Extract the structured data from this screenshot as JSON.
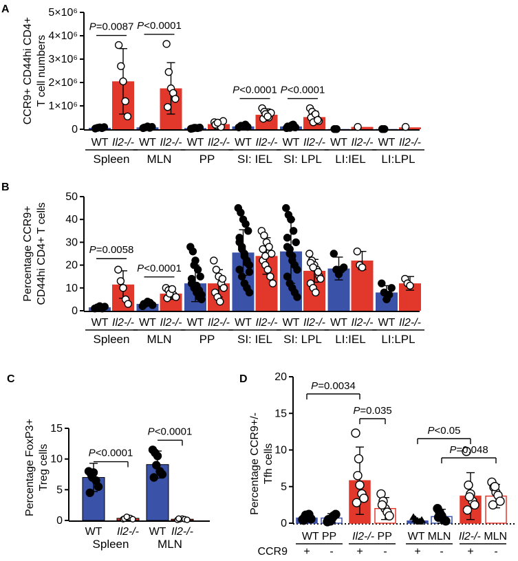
{
  "colors": {
    "wt": "#3a52a8",
    "ko": "#e2382c",
    "ink": "#000000"
  },
  "chart_data": [
    {
      "panel": "A",
      "type": "bar",
      "ylabel": [
        "CCR9+ CD44hi CD4+",
        "T cell numbers"
      ],
      "ylim": [
        0,
        5000000
      ],
      "yticks": [
        0,
        1000000,
        2000000,
        3000000,
        4000000,
        5000000
      ],
      "yticklabels": [
        "0",
        "1×10⁶",
        "2×10⁶",
        "3×10⁶",
        "4×10⁶",
        "5×10⁶"
      ],
      "groups": [
        "Spleen",
        "MLN",
        "PP",
        "SI: IEL",
        "SI: LPL",
        "LI:IEL",
        "LI:LPL"
      ],
      "genotypes": [
        "WT",
        "Il2-/-"
      ],
      "series": [
        {
          "name": "WT",
          "values": [
            60000,
            80000,
            50000,
            120000,
            120000,
            10000,
            10000
          ],
          "err": [
            20000,
            30000,
            20000,
            60000,
            60000,
            0,
            0
          ],
          "points": [
            [
              30000,
              60000,
              80000,
              50000,
              90000
            ],
            [
              50000,
              80000,
              120000,
              60000,
              100000,
              70000
            ],
            [
              20000,
              40000,
              60000,
              50000,
              70000,
              30000,
              60000
            ],
            [
              80000,
              150000,
              120000,
              200000,
              100000
            ],
            [
              50000,
              100000,
              150000,
              200000,
              80000,
              120000,
              60000,
              180000,
              90000
            ],
            [
              10000,
              10000
            ],
            [
              10000,
              10000
            ]
          ]
        },
        {
          "name": "Il2-/-",
          "values": [
            2050000,
            1750000,
            220000,
            620000,
            520000,
            100000,
            80000
          ],
          "err": [
            1400000,
            1100000,
            150000,
            250000,
            250000,
            0,
            0
          ],
          "points": [
            [
              3600000,
              2700000,
              2050000,
              1200000,
              550000
            ],
            [
              3650000,
              2450000,
              1750000,
              1550000,
              1300000,
              950000
            ],
            [
              300000,
              150000,
              250000,
              100000,
              350000,
              200000,
              280000
            ],
            [
              900000,
              750000,
              600000,
              500000,
              700000,
              450000,
              650000,
              550000
            ],
            [
              900000,
              750000,
              600000,
              450000,
              350000,
              500000,
              300000,
              650000,
              400000
            ],
            [
              100000
            ],
            [
              100000
            ]
          ]
        }
      ],
      "annotations": [
        {
          "text": "P=0.0087",
          "group": 0
        },
        {
          "text": "P<0.0001",
          "group": 1
        },
        {
          "text": "P<0.0001",
          "group": 3
        },
        {
          "text": "P<0.0001",
          "group": 4
        }
      ]
    },
    {
      "panel": "B",
      "type": "bar",
      "ylabel": [
        "Percentage CCR9+",
        "CD44hi CD4+ T cells"
      ],
      "ylim": [
        0,
        50
      ],
      "yticks": [
        0,
        10,
        20,
        30,
        40,
        50
      ],
      "yticklabels": [
        "0",
        "10",
        "20",
        "30",
        "40",
        "50"
      ],
      "groups": [
        "Spleen",
        "MLN",
        "PP",
        "SI: IEL",
        "SI: LPL",
        "LI:IEL",
        "LI:LPL"
      ],
      "genotypes": [
        "WT",
        "Il2-/-"
      ],
      "series": [
        {
          "name": "WT",
          "values": [
            1.5,
            3,
            12,
            25.5,
            26,
            18.5,
            8
          ],
          "err": [
            0.5,
            1,
            8,
            10,
            14,
            5,
            3
          ],
          "points": [
            [
              1,
              1.5,
              2,
              1,
              1.8
            ],
            [
              2,
              3,
              4,
              3.5,
              2.5,
              3
            ],
            [
              28,
              26,
              22,
              18,
              15,
              12,
              10,
              8,
              6,
              5,
              14,
              20,
              11,
              9,
              7
            ],
            [
              45,
              43,
              40,
              38,
              35,
              30,
              28,
              25,
              22,
              20,
              18,
              15,
              12,
              10,
              8,
              32,
              27,
              24,
              21,
              17
            ],
            [
              45,
              42,
              40,
              35,
              30,
              28,
              25,
              22,
              20,
              18,
              15,
              12,
              10,
              8,
              6,
              32,
              27,
              24
            ],
            [
              25,
              18,
              16,
              18,
              19
            ],
            [
              12,
              8,
              5,
              7,
              10
            ]
          ]
        },
        {
          "name": "Il2-/-",
          "values": [
            11.5,
            7.5,
            12,
            24,
            17.5,
            22,
            12
          ],
          "err": [
            6,
            2.5,
            6,
            8,
            5,
            4,
            3
          ],
          "points": [
            [
              18,
              13,
              10,
              5,
              3
            ],
            [
              10,
              9,
              8,
              7,
              6,
              5.5,
              7.5,
              9.5
            ],
            [
              22,
              18,
              15,
              12,
              10,
              8,
              6,
              4,
              14
            ],
            [
              35,
              33,
              30,
              28,
              25,
              22,
              20,
              18,
              15,
              12,
              27,
              24
            ],
            [
              25,
              22,
              20,
              18,
              15,
              12,
              10,
              8,
              17,
              14,
              21,
              19
            ],
            [
              26,
              20,
              19
            ],
            [
              14,
              12,
              11
            ]
          ]
        }
      ],
      "annotations": [
        {
          "text": "P=0.0058",
          "group": 0
        },
        {
          "text": "P<0.0001",
          "group": 1
        }
      ]
    },
    {
      "panel": "C",
      "type": "bar",
      "ylabel": [
        "Percentage FoxP3+",
        "Treg cells"
      ],
      "ylim": [
        0,
        15
      ],
      "yticks": [
        0,
        5,
        10,
        15
      ],
      "yticklabels": [
        "0",
        "5",
        "10",
        "15"
      ],
      "groups": [
        "Spleen",
        "MLN"
      ],
      "genotypes": [
        "WT",
        "Il2-/-"
      ],
      "series": [
        {
          "name": "WT",
          "values": [
            7,
            9.1
          ],
          "err": [
            2.3,
            2.2
          ],
          "points": [
            [
              8,
              7.5,
              7.8,
              6.5,
              5.5,
              4.5,
              7
            ],
            [
              11.5,
              11,
              10.5,
              8,
              7.5,
              7,
              9
            ]
          ]
        },
        {
          "name": "Il2-/-",
          "values": [
            0.35,
            0.2
          ],
          "err": [
            0.2,
            0.1
          ],
          "points": [
            [
              0.2,
              0.3,
              0.5,
              0.4,
              0.2,
              0.3,
              0.6
            ],
            [
              0.1,
              0.2,
              0.3,
              0.2,
              0.1,
              0.3
            ]
          ]
        }
      ],
      "annotations": [
        {
          "text": "P<0.0001",
          "group": 0
        },
        {
          "text": "P<0.0001",
          "group": 1
        }
      ]
    },
    {
      "panel": "D",
      "type": "bar",
      "ylabel": [
        "Percentage CCR9+/-",
        "Tfh cells"
      ],
      "ylim": [
        0,
        20
      ],
      "yticks": [
        0,
        5,
        10,
        15,
        20
      ],
      "yticklabels": [
        "0",
        "5",
        "10",
        "15",
        "20"
      ],
      "groups": [
        "WT PP",
        "Il2-/- PP",
        "WT MLN",
        "Il2-/- MLN"
      ],
      "ccr9_label": "CCR9",
      "ccr9_states": [
        "+",
        "-"
      ],
      "bars": [
        {
          "group": 0,
          "ccr9": "+",
          "value": 0.7,
          "err": 0.5,
          "points": [
            0.5,
            0.8,
            1,
            1.2,
            0.6,
            0.4,
            1.1,
            0.9
          ]
        },
        {
          "group": 0,
          "ccr9": "-",
          "value": 0.7,
          "err": 0.6,
          "points": [
            0.2,
            0.4,
            0.6,
            1,
            1.2,
            0.5,
            0.3,
            0.8
          ]
        },
        {
          "group": 1,
          "ccr9": "+",
          "value": 5.8,
          "err": 4.6,
          "points": [
            12.3,
            6.5,
            5.2,
            4,
            3.4,
            2.8,
            8.8
          ]
        },
        {
          "group": 1,
          "ccr9": "-",
          "value": 2,
          "err": 1.5,
          "points": [
            4,
            3,
            2,
            1.5,
            1,
            2.5
          ]
        },
        {
          "group": 2,
          "ccr9": "+",
          "value": 0.3,
          "err": 0.2,
          "points": [
            0.8,
            0.5,
            0.3,
            0.2,
            0.4
          ]
        },
        {
          "group": 2,
          "ccr9": "-",
          "value": 0.9,
          "err": 1,
          "points": [
            2,
            1.5,
            1,
            0.5,
            0.3,
            0.8,
            1.2
          ]
        },
        {
          "group": 3,
          "ccr9": "+",
          "value": 3.7,
          "err": 3.2,
          "points": [
            9.8,
            5.2,
            4,
            3,
            2.5,
            1.8,
            3.6
          ]
        },
        {
          "group": 3,
          "ccr9": "-",
          "value": 3.7,
          "err": 1.6,
          "points": [
            5.6,
            4.9,
            4.2,
            3.8,
            3,
            2.5,
            5
          ]
        }
      ],
      "annotations": [
        {
          "text": "P=0.0034",
          "from": 0,
          "to": 2
        },
        {
          "text": "P=0.035",
          "from": 2,
          "to": 3
        },
        {
          "text": "P<0.05",
          "from": 4,
          "to": 6
        },
        {
          "text": "P=0.048",
          "from": 5,
          "to": 7
        }
      ]
    }
  ],
  "panel_labels": [
    "A",
    "B",
    "C",
    "D"
  ]
}
